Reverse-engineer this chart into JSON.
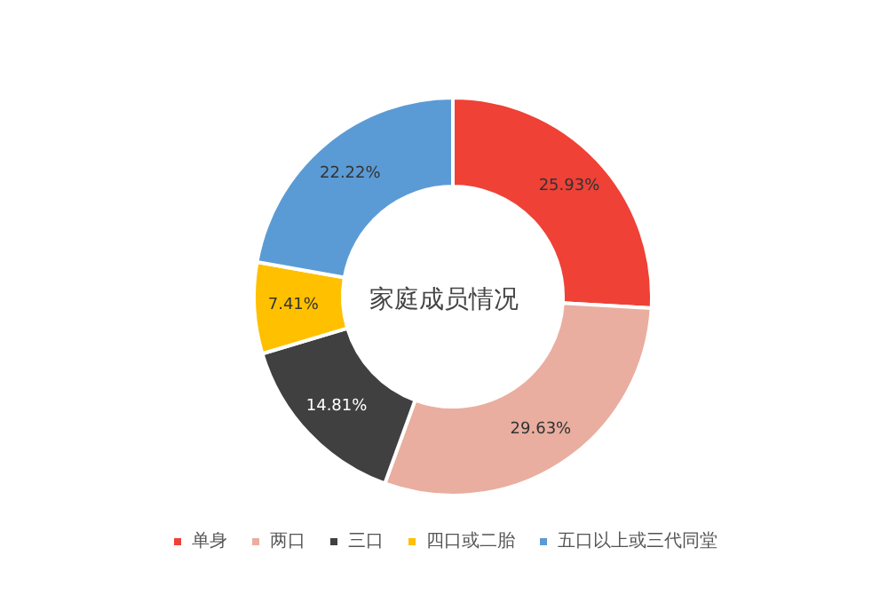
{
  "chart_data": {
    "type": "donut",
    "title": "家庭成员情况",
    "categories": [
      "单身",
      "两口",
      "三口",
      "四口或二胎",
      "五口以上或三代同堂"
    ],
    "values": [
      25.93,
      29.63,
      14.81,
      7.41,
      22.22
    ],
    "value_labels": [
      "25.93%",
      "29.63%",
      "14.81%",
      "7.41%",
      "22.22%"
    ],
    "colors": [
      "#ef4136",
      "#e9ae9f",
      "#404040",
      "#ffc000",
      "#5b9bd5"
    ],
    "legend": "bottom"
  }
}
